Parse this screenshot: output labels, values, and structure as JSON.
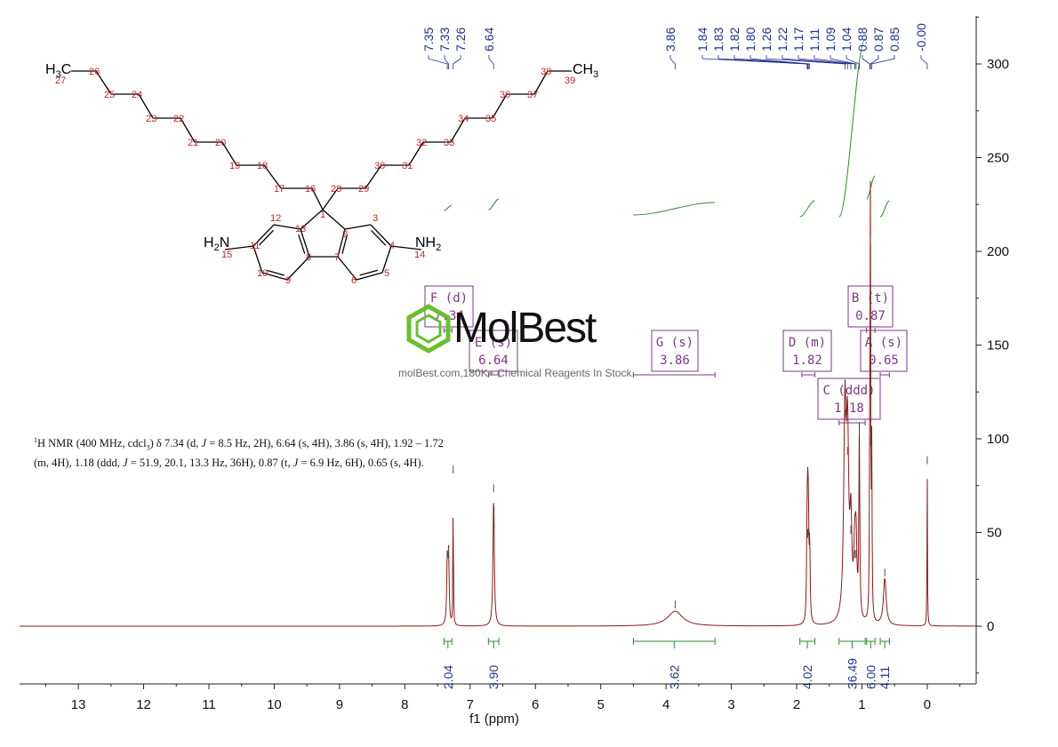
{
  "chart_data": {
    "type": "line",
    "xlabel": "f1 (ppm)",
    "x_ticks": [
      "13",
      "12",
      "11",
      "10",
      "9",
      "8",
      "7",
      "6",
      "5",
      "4",
      "3",
      "2",
      "1",
      "0"
    ],
    "y_ticks": [
      "0",
      "50",
      "100",
      "150",
      "200",
      "250",
      "300"
    ],
    "xlim": [
      13.9,
      -0.75
    ],
    "ylim": [
      -30,
      325
    ],
    "x_reversed": true,
    "y_axis_side": "right",
    "grid": false,
    "spectrum_color": "#8b1a1a",
    "integral_color": "#2e8b2e",
    "peak_label_color": "#1f2f8f",
    "multiplet_color": "#7a3a85",
    "peaks": [
      {
        "ppm": 7.35,
        "height": 34,
        "width": 0.01
      },
      {
        "ppm": 7.33,
        "height": 36,
        "width": 0.01
      },
      {
        "ppm": 7.26,
        "height": 80,
        "width": 0.004
      },
      {
        "ppm": 6.64,
        "height": 70,
        "width": 0.012
      },
      {
        "ppm": 3.86,
        "height": 8,
        "width": 0.14
      },
      {
        "ppm": 1.84,
        "height": 45,
        "width": 0.008
      },
      {
        "ppm": 1.83,
        "height": 46,
        "width": 0.008
      },
      {
        "ppm": 1.82,
        "height": 47,
        "width": 0.008
      },
      {
        "ppm": 1.8,
        "height": 40,
        "width": 0.008
      },
      {
        "ppm": 1.26,
        "height": 110,
        "width": 0.022
      },
      {
        "ppm": 1.22,
        "height": 90,
        "width": 0.02
      },
      {
        "ppm": 1.17,
        "height": 48,
        "width": 0.018
      },
      {
        "ppm": 1.11,
        "height": 35,
        "width": 0.018
      },
      {
        "ppm": 1.09,
        "height": 35,
        "width": 0.015
      },
      {
        "ppm": 1.04,
        "height": 100,
        "width": 0.008
      },
      {
        "ppm": 0.88,
        "height": 95,
        "width": 0.006
      },
      {
        "ppm": 0.87,
        "height": 203,
        "width": 0.005
      },
      {
        "ppm": 0.85,
        "height": 90,
        "width": 0.006
      },
      {
        "ppm": 0.65,
        "height": 25,
        "width": 0.025
      },
      {
        "ppm": 0.0,
        "height": 85,
        "width": 0.004
      }
    ],
    "peak_labels": [
      "7.35",
      "7.33",
      "7.26",
      "6.64",
      "3.86",
      "1.84",
      "1.83",
      "1.82",
      "1.80",
      "1.26",
      "1.22",
      "1.17",
      "1.11",
      "1.09",
      "1.04",
      "0.88",
      "0.87",
      "0.85",
      "-0.00"
    ],
    "peak_groups": [
      {
        "labels": [
          "7.35",
          "7.33",
          "7.26"
        ],
        "peaks": [
          7.35,
          7.33,
          7.26
        ]
      },
      {
        "labels": [
          "6.64"
        ],
        "peaks": [
          6.64
        ]
      },
      {
        "labels": [
          "3.86"
        ],
        "peaks": [
          3.86
        ]
      },
      {
        "labels": [
          "1.84",
          "1.83",
          "1.82",
          "1.80",
          "1.26",
          "1.22",
          "1.17",
          "1.11",
          "1.09",
          "1.04",
          "0.88",
          "0.87",
          "0.85",
          "-0.00"
        ],
        "peaks": [
          1.84,
          1.83,
          1.82,
          1.8,
          1.26,
          1.22,
          1.17,
          1.11,
          1.09,
          1.04,
          0.88,
          0.87,
          0.85,
          0.0
        ]
      }
    ],
    "integrals": [
      {
        "from": 7.4,
        "to": 7.28,
        "value": "2.04"
      },
      {
        "from": 6.72,
        "to": 6.56,
        "value": "3.90"
      },
      {
        "from": 4.5,
        "to": 3.25,
        "value": "3.62"
      },
      {
        "from": 1.95,
        "to": 1.72,
        "value": "4.02"
      },
      {
        "from": 1.35,
        "to": 0.95,
        "value": "36.49"
      },
      {
        "from": 0.93,
        "to": 0.8,
        "value": "6.00"
      },
      {
        "from": 0.72,
        "to": 0.58,
        "value": "4.11"
      }
    ],
    "multiplets": [
      {
        "letter": "F",
        "mult": "(d)",
        "shift": "7.34",
        "range": [
          7.4,
          7.28
        ]
      },
      {
        "letter": "E",
        "mult": "(s)",
        "shift": "6.64",
        "range": [
          6.72,
          6.56
        ]
      },
      {
        "letter": "G",
        "mult": "(s)",
        "shift": "3.86",
        "range": [
          4.5,
          3.25
        ]
      },
      {
        "letter": "D",
        "mult": "(m)",
        "shift": "1.82",
        "range": [
          1.92,
          1.72
        ]
      },
      {
        "letter": "C",
        "mult": "(ddd)",
        "shift": "1.18",
        "range": [
          1.35,
          0.95
        ]
      },
      {
        "letter": "B",
        "mult": "(t)",
        "shift": "0.87",
        "range": [
          0.93,
          0.8
        ]
      },
      {
        "letter": "A",
        "mult": "(s)",
        "shift": "0.65",
        "range": [
          0.72,
          0.58
        ]
      }
    ]
  },
  "structure": {
    "atom_numbers": [
      "1",
      "2",
      "3",
      "4",
      "5",
      "6",
      "7",
      "8",
      "9",
      "10",
      "11",
      "12",
      "13",
      "14",
      "15",
      "16",
      "17",
      "18",
      "19",
      "20",
      "21",
      "22",
      "23",
      "24",
      "25",
      "26",
      "27",
      "28",
      "29",
      "30",
      "31",
      "32",
      "33",
      "34",
      "35",
      "36",
      "37",
      "38",
      "39"
    ],
    "groups": {
      "left_nh2": {
        "main": "H",
        "sub": "2",
        "tail": "N"
      },
      "right_nh2": {
        "main": "NH",
        "sub": "2"
      },
      "left_ch3": {
        "main": "H",
        "sub": "3",
        "tail": "C"
      },
      "right_ch3": {
        "main": "CH",
        "sub": "3"
      }
    }
  },
  "summary": {
    "nucleus_sup": "1",
    "line1_a": "H NMR (400 MHz, cdcl",
    "line1_sub": "3",
    "line1_b": ") δ 7.34 (d, ",
    "j": "J",
    "line1_c": " = 8.5 Hz, 2H), 6.64 (s, 4H), 3.86 (s, 4H), 1.92 – 1.72",
    "line2_a": "(m, 4H), 1.18 (ddd, ",
    "line2_b": " = 51.9, 20.1, 13.3 Hz, 36H), 0.87 (t, ",
    "line2_c": " = 6.9 Hz, 6H), 0.65 (s, 4H)."
  },
  "watermark": {
    "name": "MolBest",
    "tagline": "molBest.com,180K+ Chemical Reagents In Stock.",
    "logo_color": "#6abf2e"
  }
}
